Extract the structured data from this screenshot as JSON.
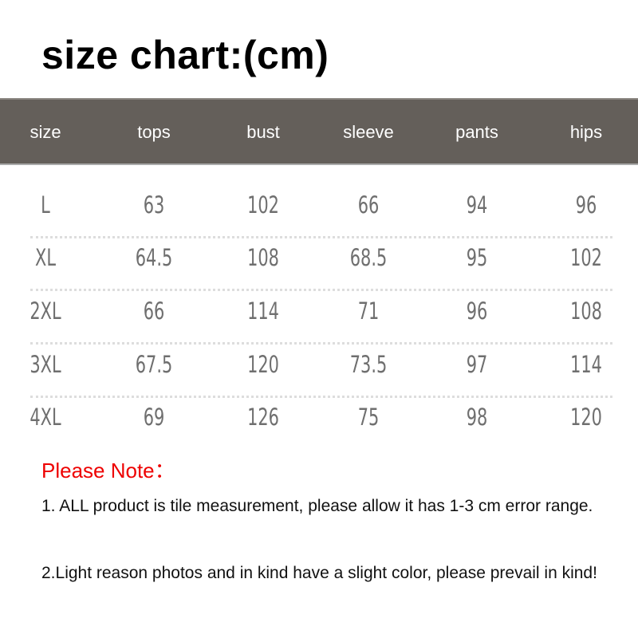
{
  "title": "size chart:(cm)",
  "table": {
    "headers": [
      "size",
      "tops",
      "bust",
      "sleeve",
      "pants",
      "hips"
    ],
    "rows": [
      [
        "L",
        "63",
        "102",
        "66",
        "94",
        "96"
      ],
      [
        "XL",
        "64.5",
        "108",
        "68.5",
        "95",
        "102"
      ],
      [
        "2XL",
        "66",
        "114",
        "71",
        "96",
        "108"
      ],
      [
        "3XL",
        "67.5",
        "120",
        "73.5",
        "97",
        "114"
      ],
      [
        "4XL",
        "69",
        "126",
        "75",
        "98",
        "120"
      ]
    ]
  },
  "note": {
    "title": "Please Note：",
    "lines": [
      "1. ALL product is tile measurement, please allow it has 1-3 cm error range.",
      "2.Light reason photos and in kind have a slight color, please prevail in kind!"
    ]
  },
  "colors": {
    "header_bg": "#645f5a",
    "note_title": "#e00000",
    "cell_text": "#6f6f6f"
  }
}
